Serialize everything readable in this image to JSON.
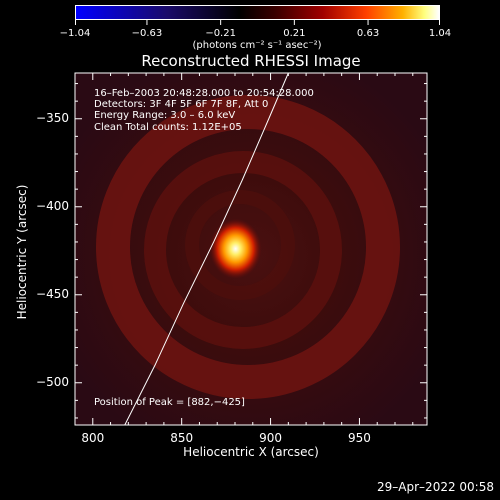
{
  "colorbar": {
    "tick_labels": [
      "−1.04",
      "−0.63",
      "−0.21",
      "0.21",
      "0.63",
      "1.04"
    ],
    "tick_values": [
      -1.04,
      -0.63,
      -0.21,
      0.21,
      0.63,
      1.04
    ],
    "range": [
      -1.04,
      1.04
    ],
    "unit_label": "(photons cm⁻² s⁻¹ asec⁻²)"
  },
  "chart_data": {
    "type": "heatmap",
    "title": "Reconstructed RHESSI Image",
    "xlabel": "Heliocentric X (arcsec)",
    "ylabel": "Heliocentric Y (arcsec)",
    "xlim": [
      790,
      988
    ],
    "ylim": [
      -524,
      -324
    ],
    "x_ticks": [
      800,
      850,
      900,
      950
    ],
    "x_tick_labels": [
      "800",
      "850",
      "900",
      "950"
    ],
    "y_ticks": [
      -350,
      -400,
      -450,
      -500
    ],
    "y_tick_labels": [
      "−350",
      "−400",
      "−450",
      "−500"
    ],
    "peak": {
      "x": 882,
      "y": -425
    },
    "info_lines": [
      "16–Feb–2003 20:48:28.000 to 20:54:28.000",
      "Detectors: 3F 4F 5F 6F 7F 8F, Att 0",
      "Energy Range: 3.0 – 6.0 keV",
      "Clean     Total counts: 1.12E+05"
    ],
    "peak_label": "Position of Peak = [882,−425]",
    "limb_points": [
      [
        818,
        -524
      ],
      [
        835,
        -490
      ],
      [
        851,
        -455
      ],
      [
        868,
        -420
      ],
      [
        884,
        -385
      ],
      [
        899,
        -350
      ],
      [
        910,
        -324
      ]
    ]
  },
  "timestamp": "29–Apr–2022 00:58",
  "colors": {
    "background": "#000000",
    "axes": "#ffffff",
    "limb": "#ffffff"
  }
}
